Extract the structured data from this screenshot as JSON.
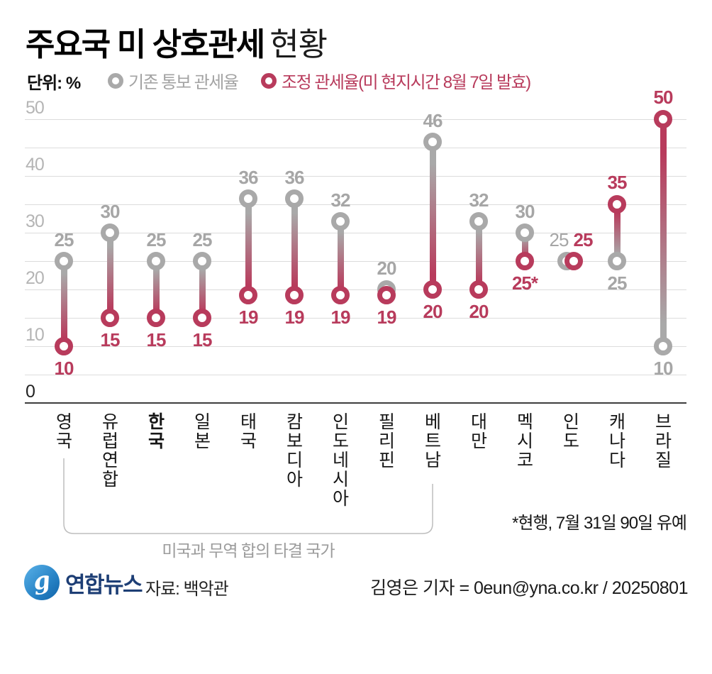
{
  "header": {
    "title_bold": "주요국 미 상호관세",
    "title_regular": "현황",
    "unit": "단위: %"
  },
  "legend": {
    "old": {
      "label": "기존 통보 관세율",
      "color": "#a9a9a9"
    },
    "new": {
      "label": "조정 관세율(미 현지시간 8월 7일 발효)",
      "color": "#b83b5c"
    }
  },
  "chart_data": {
    "type": "dumbbell",
    "title": "주요국 미 상호관세 현황",
    "unit": "%",
    "ylim": [
      0,
      50
    ],
    "gridline_step": 5,
    "grid": true,
    "ytick_labels": [
      50,
      40,
      30,
      20,
      10,
      0
    ],
    "categories": [
      "영국",
      "유럽연합",
      "한국",
      "일본",
      "태국",
      "캄보디아",
      "인도네시아",
      "필리핀",
      "베트남",
      "대만",
      "멕시코",
      "인도",
      "캐나다",
      "브라질"
    ],
    "bold_category": "한국",
    "series": [
      {
        "name": "기존 통보 관세율",
        "color": "#a9a9a9",
        "values": [
          25,
          30,
          25,
          25,
          36,
          36,
          32,
          20,
          46,
          32,
          30,
          25,
          25,
          10
        ]
      },
      {
        "name": "조정 관세율(미 현지시간 8월 7일 발효)",
        "color": "#b83b5c",
        "values": [
          10,
          15,
          15,
          15,
          19,
          19,
          19,
          19,
          20,
          20,
          25,
          25,
          35,
          50
        ]
      }
    ],
    "new_value_labels": [
      "10",
      "15",
      "15",
      "15",
      "19",
      "19",
      "19",
      "19",
      "20",
      "20",
      "25*",
      "25",
      "35",
      "50"
    ],
    "old_value_labels": [
      "25",
      "30",
      "25",
      "25",
      "36",
      "36",
      "32",
      "20",
      "46",
      "32",
      "30",
      "25",
      "25",
      "10"
    ]
  },
  "annotations": {
    "bracket": {
      "from": "영국",
      "to": "베트남",
      "label": "미국과 무역 합의 타결 국가"
    },
    "footnote": "*현행, 7월 31일 90일 유예"
  },
  "footer": {
    "logo_text": "연합뉴스",
    "logo_glyph": "g",
    "source": "자료: 백악관",
    "byline": "김영은 기자 = 0eun@yna.co.kr / 20250801"
  }
}
